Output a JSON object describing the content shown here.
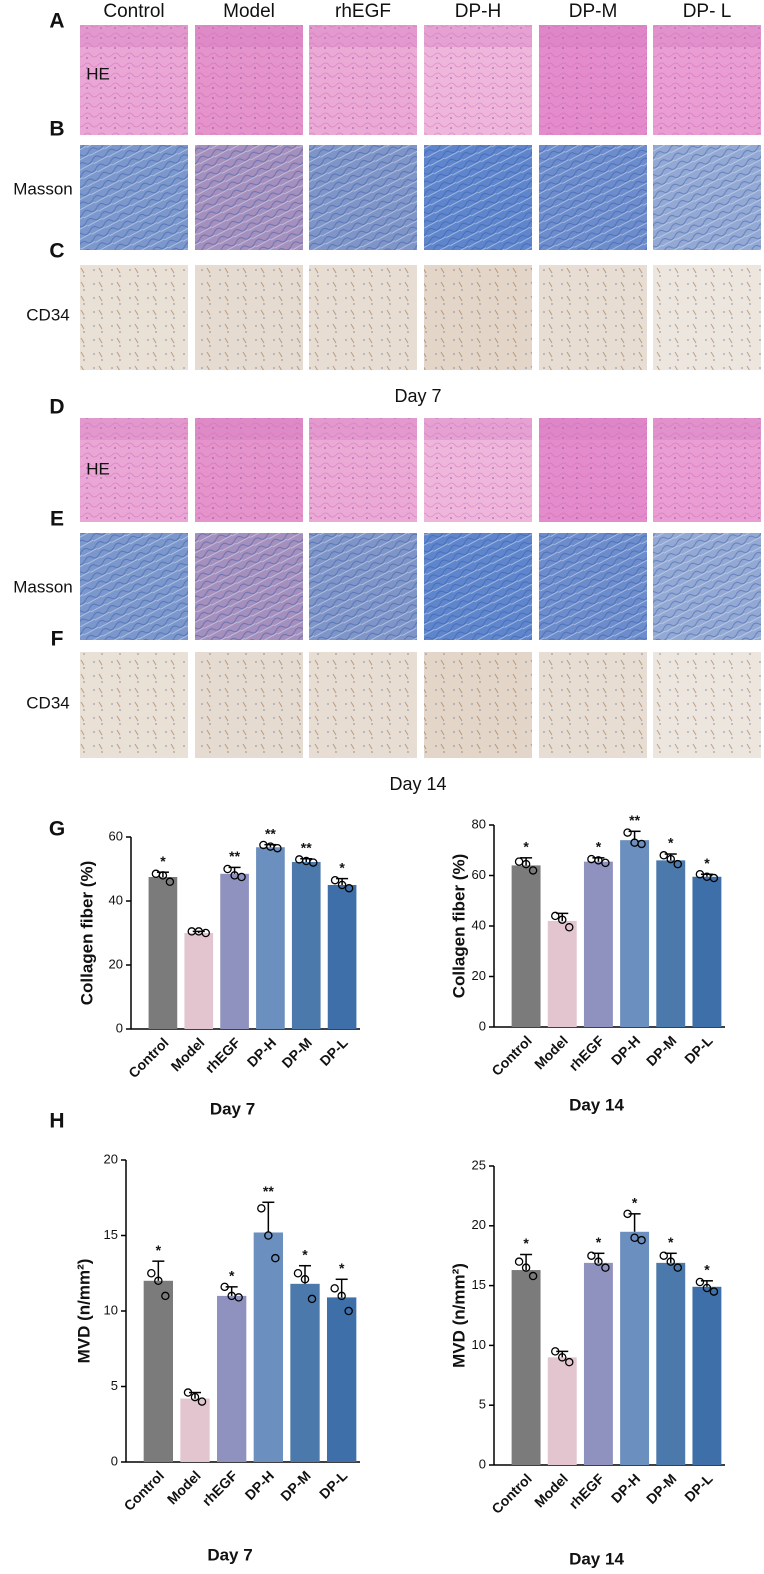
{
  "figure": {
    "columns": [
      "Control",
      "Model",
      "rhEGF",
      "DP-H",
      "DP-M",
      "DP- L"
    ],
    "letters": [
      "A",
      "B",
      "C",
      "D",
      "E",
      "F",
      "G",
      "H"
    ],
    "rows": [
      "HE",
      "Masson",
      "CD34"
    ],
    "days": [
      "Day 7",
      "Day 14"
    ]
  },
  "chart_data": [
    {
      "type": "bar",
      "ylabel": "Collagen fiber (%)",
      "xlabel": "Day 7",
      "categories": [
        "Control",
        "Model",
        "rhEGF",
        "DP-H",
        "DP-M",
        "DP-L"
      ],
      "colors": [
        "#7b7b7b",
        "#e3c5d0",
        "#8f92bf",
        "#6b8fbe",
        "#4b79ab",
        "#3e6fa8"
      ],
      "values": [
        47.5,
        30,
        48.5,
        56.8,
        52.2,
        45
      ],
      "errors": [
        1.5,
        0.5,
        2,
        0.8,
        1,
        2
      ],
      "points": [
        [
          48.5,
          48,
          46
        ],
        [
          30.5,
          30.5,
          30
        ],
        [
          50,
          48,
          47.5
        ],
        [
          57.5,
          57,
          56.5
        ],
        [
          53,
          52.5,
          52
        ],
        [
          46.5,
          45,
          44
        ]
      ],
      "annotations": [
        "*",
        null,
        "**",
        "**",
        "**",
        "*"
      ],
      "ylim": [
        0,
        60
      ],
      "yticks": [
        0,
        20,
        40,
        60
      ]
    },
    {
      "type": "bar",
      "ylabel": "Collagen fiber (%)",
      "xlabel": "Day 14",
      "categories": [
        "Control",
        "Model",
        "rhEGF",
        "DP-H",
        "DP-M",
        "DP-L"
      ],
      "colors": [
        "#7b7b7b",
        "#e3c5d0",
        "#8f92bf",
        "#6b8fbe",
        "#4b79ab",
        "#3e6fa8"
      ],
      "values": [
        64,
        42,
        65.5,
        74,
        66,
        59.5
      ],
      "errors": [
        3,
        3,
        1.5,
        3.5,
        2.5,
        1
      ],
      "points": [
        [
          65.5,
          64.5,
          62
        ],
        [
          44,
          42.5,
          39.5
        ],
        [
          66.5,
          66,
          65
        ],
        [
          77,
          73,
          72.5
        ],
        [
          68,
          66.5,
          64.5
        ],
        [
          60.5,
          59.5,
          59
        ]
      ],
      "annotations": [
        "*",
        null,
        "*",
        "**",
        "*",
        "*"
      ],
      "ylim": [
        0,
        80
      ],
      "yticks": [
        0,
        20,
        40,
        60,
        80
      ]
    },
    {
      "type": "bar",
      "ylabel": "MVD (n/mm²)",
      "xlabel": "Day 7",
      "categories": [
        "Control",
        "Model",
        "rhEGF",
        "DP-H",
        "DP-M",
        "DP-L"
      ],
      "colors": [
        "#7b7b7b",
        "#e3c5d0",
        "#8f92bf",
        "#6b8fbe",
        "#4b79ab",
        "#3e6fa8"
      ],
      "values": [
        12,
        4.2,
        11,
        15.2,
        11.8,
        10.9
      ],
      "errors": [
        1.3,
        0.4,
        0.6,
        2,
        1.2,
        1.2
      ],
      "points": [
        [
          12.5,
          12,
          11
        ],
        [
          4.6,
          4.3,
          4
        ],
        [
          11.6,
          11,
          10.9
        ],
        [
          16.8,
          15,
          13.5
        ],
        [
          12.5,
          12.1,
          10.8
        ],
        [
          11.5,
          11,
          10
        ]
      ],
      "annotations": [
        "*",
        null,
        "*",
        "**",
        "*",
        "*"
      ],
      "ylim": [
        0,
        20
      ],
      "yticks": [
        0,
        5,
        10,
        15,
        20
      ]
    },
    {
      "type": "bar",
      "ylabel": "MVD (n/mm²)",
      "xlabel": "Day 14",
      "categories": [
        "Control",
        "Model",
        "rhEGF",
        "DP-H",
        "DP-M",
        "DP-L"
      ],
      "colors": [
        "#7b7b7b",
        "#e3c5d0",
        "#8f92bf",
        "#6b8fbe",
        "#4b79ab",
        "#3e6fa8"
      ],
      "values": [
        16.3,
        9,
        16.9,
        19.5,
        16.9,
        14.9
      ],
      "errors": [
        1.3,
        0.5,
        0.8,
        1.5,
        0.8,
        0.5
      ],
      "points": [
        [
          17,
          16.5,
          15.8
        ],
        [
          9.5,
          9,
          8.6
        ],
        [
          17.5,
          17,
          16.5
        ],
        [
          21,
          19,
          18.8
        ],
        [
          17.5,
          17,
          16.5
        ],
        [
          15.3,
          14.8,
          14.5
        ]
      ],
      "annotations": [
        "*",
        null,
        "*",
        "*",
        "*",
        "*"
      ],
      "ylim": [
        0,
        25
      ],
      "yticks": [
        0,
        5,
        10,
        15,
        20,
        25
      ]
    }
  ]
}
